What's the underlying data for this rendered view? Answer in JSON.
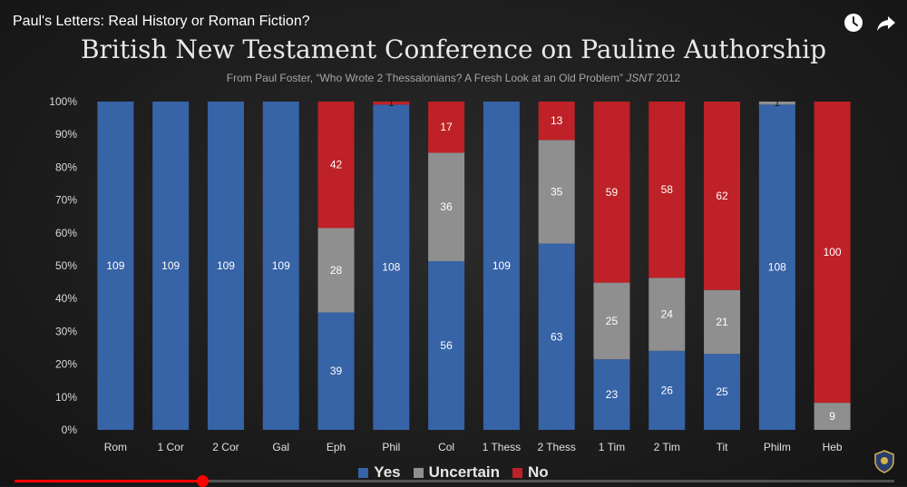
{
  "video": {
    "title": "Paul's Letters: Real History or Roman Fiction?",
    "progress": 0.213
  },
  "icons": {
    "watch_later": "clock-icon",
    "share": "share-arrow-icon",
    "channel": "channel-logo-icon"
  },
  "colors": {
    "yes": "#3763a7",
    "uncertain": "#8f8f8f",
    "no": "#be2127",
    "progress": "#ff0000"
  },
  "chart_data": {
    "type": "bar",
    "stacked": "percent",
    "title": "British New Testament Conference on Pauline Authorship",
    "subtitle": "From Paul Foster, “Who Wrote 2 Thessalonians? A Fresh Look at an Old Problem”",
    "subtitle_journal": "JSNT",
    "subtitle_year": "2012",
    "categories": [
      "Rom",
      "1 Cor",
      "2 Cor",
      "Gal",
      "Eph",
      "Phil",
      "Col",
      "1 Thess",
      "2 Thess",
      "1 Tim",
      "2 Tim",
      "Tit",
      "Philm",
      "Heb"
    ],
    "series": [
      {
        "name": "Yes",
        "values": [
          109,
          109,
          109,
          109,
          39,
          108,
          56,
          109,
          63,
          23,
          26,
          25,
          108,
          0
        ]
      },
      {
        "name": "Uncertain",
        "values": [
          0,
          0,
          0,
          0,
          28,
          0,
          36,
          0,
          35,
          25,
          24,
          21,
          1,
          9
        ]
      },
      {
        "name": "No",
        "values": [
          0,
          0,
          0,
          0,
          42,
          1,
          17,
          0,
          13,
          59,
          58,
          62,
          0,
          100
        ]
      }
    ],
    "y_ticks": [
      "0%",
      "10%",
      "20%",
      "30%",
      "40%",
      "50%",
      "60%",
      "70%",
      "80%",
      "90%",
      "100%"
    ],
    "ylim": [
      0,
      100
    ],
    "xlabel": "",
    "ylabel": "",
    "grid": false,
    "legend": "bottom"
  }
}
